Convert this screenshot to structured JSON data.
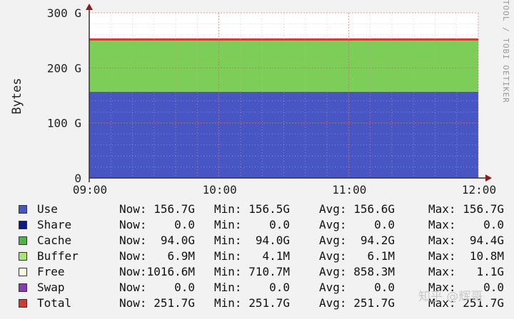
{
  "chart_data": {
    "type": "area",
    "title": "",
    "ylabel": "Bytes",
    "side_label": "TOOL / TOBI OETIKER",
    "x": [
      "09:00",
      "10:00",
      "11:00",
      "12:00"
    ],
    "y_ticks": [
      {
        "value": 0,
        "label": "0"
      },
      {
        "value": 100,
        "label": "100 G"
      },
      {
        "value": 200,
        "label": "200 G"
      },
      {
        "value": 300,
        "label": "300 G"
      }
    ],
    "ylim": [
      0,
      300
    ],
    "y_unit": "G",
    "grid": true,
    "stack": [
      {
        "name": "Use",
        "color": "#4856c4",
        "values": [
          156.7,
          156.7,
          156.7,
          156.7
        ]
      },
      {
        "name": "Cache",
        "color": "#7cce58",
        "values": [
          94.0,
          94.0,
          94.0,
          94.0
        ]
      },
      {
        "name": "Free",
        "color": "#fbfbe4",
        "values": [
          1.0,
          1.0,
          1.0,
          1.0
        ]
      },
      {
        "name": "Total",
        "color": "#cf3b2c",
        "line_only": true,
        "values": [
          251.7,
          251.7,
          251.7,
          251.7
        ]
      }
    ],
    "legend": [
      {
        "name": "Use",
        "color": "#4856c4",
        "now": "Now: 156.7G",
        "min": "Min: 156.5G",
        "avg": "Avg: 156.6G",
        "max": "Max: 156.7G"
      },
      {
        "name": "Share",
        "color": "#0a1a88",
        "now": "Now:    0.0",
        "min": "Min:    0.0",
        "avg": "Avg:    0.0",
        "max": "Max:    0.0"
      },
      {
        "name": "Cache",
        "color": "#52b24a",
        "now": "Now:  94.0G",
        "min": "Min:  94.0G",
        "avg": "Avg:  94.2G",
        "max": "Max:  94.4G"
      },
      {
        "name": "Buffer",
        "color": "#a8e676",
        "now": "Now:   6.9M",
        "min": "Min:   4.1M",
        "avg": "Avg:   6.1M",
        "max": "Max:  10.8M"
      },
      {
        "name": "Free",
        "color": "#fbfbe4",
        "now": "Now:1016.6M",
        "min": "Min: 710.7M",
        "avg": "Avg: 858.3M",
        "max": "Max:   1.1G"
      },
      {
        "name": "Swap",
        "color": "#8a3bb8",
        "now": "Now:    0.0",
        "min": "Min:    0.0",
        "avg": "Avg:    0.0",
        "max": "Max:    0.0"
      },
      {
        "name": "Total",
        "color": "#cf3b2c",
        "now": "Now: 251.7G",
        "min": "Min: 251.7G",
        "avg": "Avg: 251.7G",
        "max": "Max: 251.7G"
      }
    ]
  },
  "watermark": "知乎 @辉哥"
}
